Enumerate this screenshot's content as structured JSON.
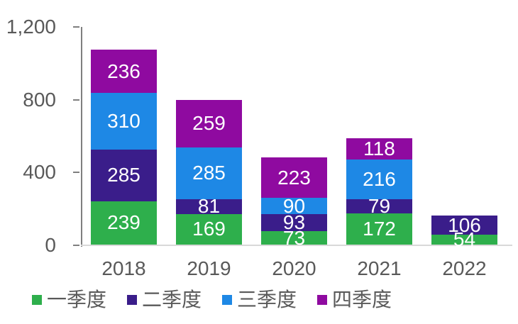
{
  "chart_data": {
    "type": "bar",
    "stacked": true,
    "categories": [
      "2018",
      "2019",
      "2020",
      "2021",
      "2022"
    ],
    "series": [
      {
        "name": "一季度",
        "color": "#2EAF4C",
        "values": [
          239,
          169,
          73,
          172,
          54
        ]
      },
      {
        "name": "二季度",
        "color": "#3A1D8A",
        "values": [
          285,
          81,
          93,
          79,
          106
        ]
      },
      {
        "name": "三季度",
        "color": "#1E88E5",
        "values": [
          310,
          285,
          90,
          216,
          0
        ]
      },
      {
        "name": "四季度",
        "color": "#8F0AA0",
        "values": [
          236,
          259,
          223,
          118,
          0
        ]
      }
    ],
    "totals": [
      1070,
      794,
      479,
      585,
      160
    ],
    "ylim": [
      0,
      1200
    ],
    "yticks": [
      {
        "value": 1200,
        "label": "1,200"
      },
      {
        "value": 800,
        "label": "800"
      },
      {
        "value": 400,
        "label": "400"
      },
      {
        "value": 0,
        "label": "0"
      }
    ],
    "grid": false,
    "legend_position": "bottom",
    "value_label_style": "white, centered in each segment, zero segments hidden"
  },
  "colors": {
    "background": "#FFFFFF",
    "y_axis_line": "#7F7F7F",
    "x_axis_line": "#D9D9D9",
    "axis_text": "#595959",
    "value_text": "#FFFFFF"
  },
  "layout_values": {
    "note": "no title, no gridlines; ticks outside y-axis"
  }
}
